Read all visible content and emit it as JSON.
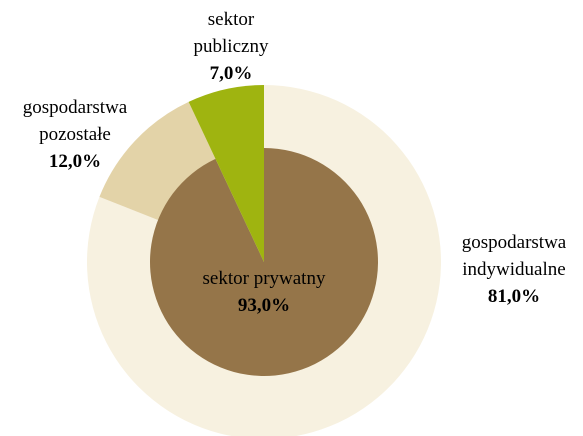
{
  "chart_data": {
    "type": "nested-pie",
    "inner": {
      "categories": [
        "sektor prywatny",
        "sektor publiczny"
      ],
      "values": [
        93,
        7
      ],
      "value_labels": [
        "93,0%",
        "7,0%"
      ],
      "colors": [
        "#957549",
        "#9fb410"
      ]
    },
    "outer": {
      "categories": [
        "gospodarstwa indywidualne",
        "gospodarstwa pozostałe"
      ],
      "values": [
        81,
        12
      ],
      "value_labels": [
        "81,0%",
        "12,0%"
      ],
      "colors": [
        "#f7f1e0",
        "#e3d3a8"
      ]
    }
  }
}
